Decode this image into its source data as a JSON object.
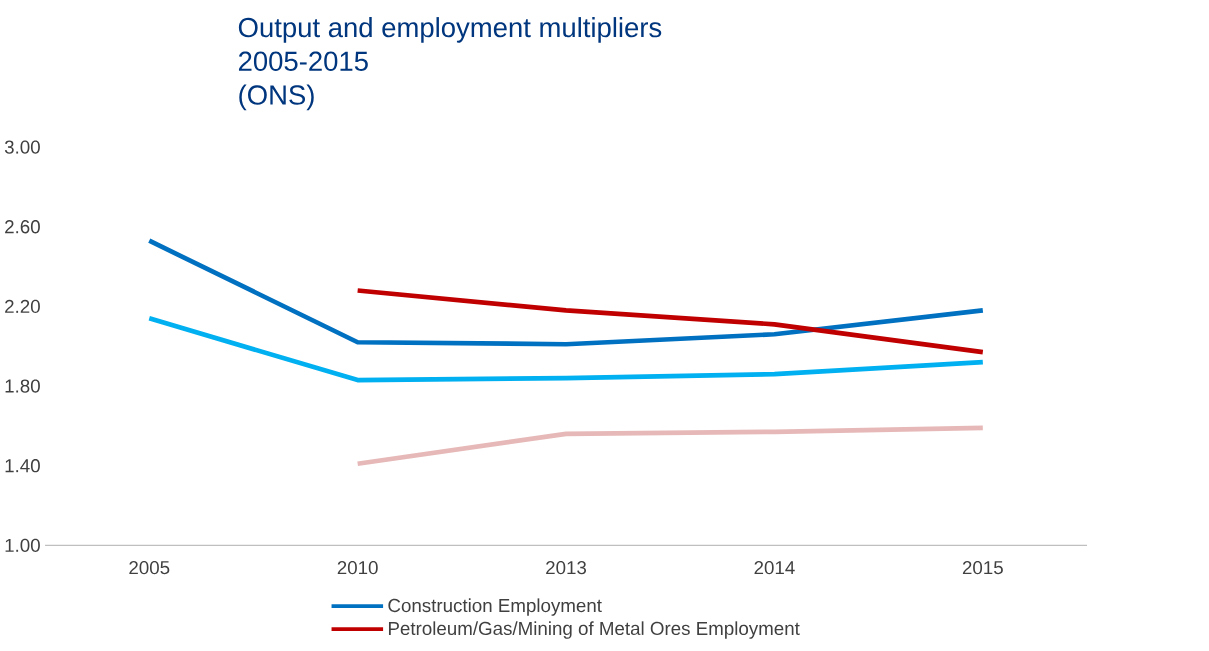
{
  "chart_data": {
    "type": "line",
    "title": "Output and employment multipliers",
    "subtitle": "2005-2015",
    "annotations": [
      "(ONS)"
    ],
    "categories": [
      "2005",
      "2010",
      "2013",
      "2014",
      "2015"
    ],
    "series": [
      {
        "name": "Construction Employment",
        "color": "#0070c0",
        "values": [
          2.53,
          2.02,
          2.01,
          2.06,
          2.18
        ]
      },
      {
        "name": "Petroleum/Gas/Mining of Metal Ores Employment",
        "color": "#c00000",
        "values": [
          null,
          2.28,
          2.18,
          2.11,
          1.97
        ]
      },
      {
        "color": "#00b0f0",
        "values": [
          2.14,
          1.83,
          1.84,
          1.86,
          1.92
        ]
      },
      {
        "color": "#e6b9b8",
        "values": [
          null,
          1.41,
          1.56,
          1.57,
          1.59
        ]
      }
    ],
    "ylim": [
      1,
      3
    ],
    "yticks": [
      {
        "value": 1,
        "label": "1.00"
      },
      {
        "value": 1.4,
        "label": "1.40"
      },
      {
        "value": 1.8,
        "label": "1.80"
      },
      {
        "value": 2.2,
        "label": "2.20"
      },
      {
        "value": 2.6,
        "label": "2.60"
      },
      {
        "value": 3,
        "label": "3.00"
      }
    ],
    "legend": "bottom",
    "marker": "none",
    "line_style": "solid"
  }
}
